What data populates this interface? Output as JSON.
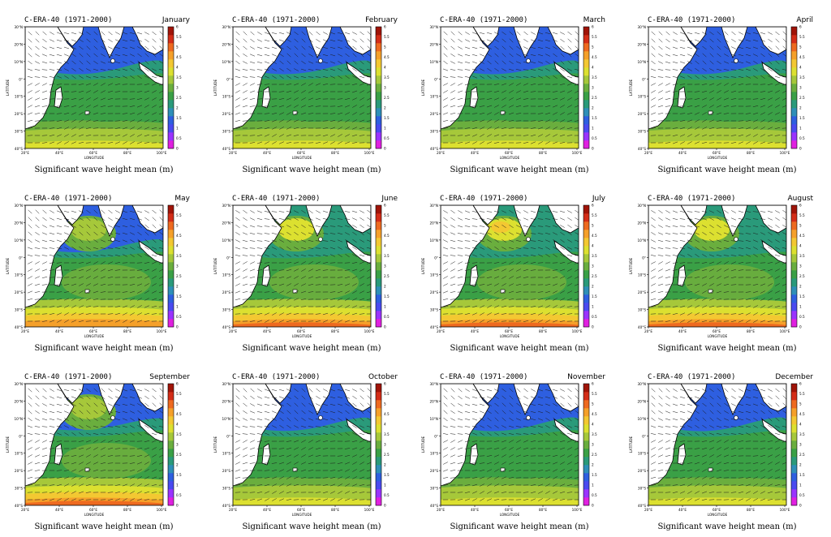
{
  "common": {
    "dataset_label": "C-ERA-40 (1971-2000)",
    "caption": "Significant wave height mean (m)",
    "xlabel": "LONGITUDE",
    "ylabel": "LATITUDE",
    "lat_ticks": [
      "30°N",
      "20°N",
      "10°N",
      "0°",
      "10°S",
      "20°S",
      "30°S",
      "40°S"
    ],
    "lon_ticks": [
      "20°E",
      "40°E",
      "60°E",
      "80°E",
      "100°E"
    ],
    "colorbar_ticks": [
      "6",
      "5.5",
      "5",
      "4.5",
      "4",
      "3.5",
      "3",
      "2.5",
      "2",
      "1.5",
      "1",
      "0.5",
      "0"
    ]
  },
  "colors": {
    "level_colors": [
      "#e020e0",
      "#9a33ff",
      "#4a4af0",
      "#2e5fe0",
      "#2e8fb8",
      "#2a9a7a",
      "#3aa046",
      "#6aae3e",
      "#a6c83a",
      "#dce030",
      "#f3c832",
      "#f5a02a",
      "#ee6a20",
      "#d42d18",
      "#a01408"
    ],
    "land": "#ffffff",
    "coast": "#000000",
    "arrow": "#1a1a1a"
  },
  "months": [
    {
      "name": "January"
    },
    {
      "name": "February"
    },
    {
      "name": "March"
    },
    {
      "name": "April"
    },
    {
      "name": "May"
    },
    {
      "name": "June"
    },
    {
      "name": "July"
    },
    {
      "name": "August"
    },
    {
      "name": "September"
    },
    {
      "name": "October"
    },
    {
      "name": "November"
    },
    {
      "name": "December"
    }
  ]
}
